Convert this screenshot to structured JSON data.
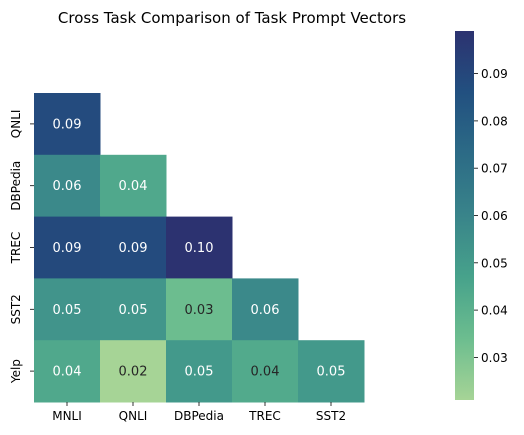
{
  "chart_data": {
    "type": "heatmap",
    "title": "Cross Task Comparison of Task Prompt Vectors",
    "x_categories": [
      "MNLI",
      "QNLI",
      "DBPedia",
      "TREC",
      "SST2"
    ],
    "y_categories": [
      "QNLI",
      "DBPedia",
      "TREC",
      "SST2",
      "Yelp"
    ],
    "matrix": [
      [
        0.088,
        null,
        null,
        null,
        null
      ],
      [
        0.058,
        0.044,
        null,
        null,
        null
      ],
      [
        0.089,
        0.088,
        0.099,
        null,
        null
      ],
      [
        0.053,
        0.052,
        0.034,
        0.058,
        null
      ],
      [
        0.044,
        0.021,
        0.051,
        0.043,
        0.051
      ]
    ],
    "cell_labels": [
      [
        "0.09",
        "",
        "",
        "",
        ""
      ],
      [
        "0.06",
        "0.04",
        "",
        "",
        ""
      ],
      [
        "0.09",
        "0.09",
        "0.10",
        "",
        ""
      ],
      [
        "0.05",
        "0.05",
        "0.03",
        "0.06",
        ""
      ],
      [
        "0.04",
        "0.02",
        "0.05",
        "0.04",
        "0.05"
      ]
    ],
    "colorbar": {
      "vmin": 0.021,
      "vmax": 0.099,
      "ticks": [
        0.03,
        0.04,
        0.05,
        0.06,
        0.07,
        0.08,
        0.09
      ],
      "tick_labels": [
        "0.03",
        "0.04",
        "0.05",
        "0.06",
        "0.07",
        "0.08",
        "0.09"
      ]
    },
    "colormap": [
      "#a6d496",
      "#6cbd8f",
      "#47a28b",
      "#39848a",
      "#2c6b86",
      "#225080",
      "#2c3270"
    ],
    "grid": false,
    "mask": "upper triangle (lower-left only)"
  }
}
